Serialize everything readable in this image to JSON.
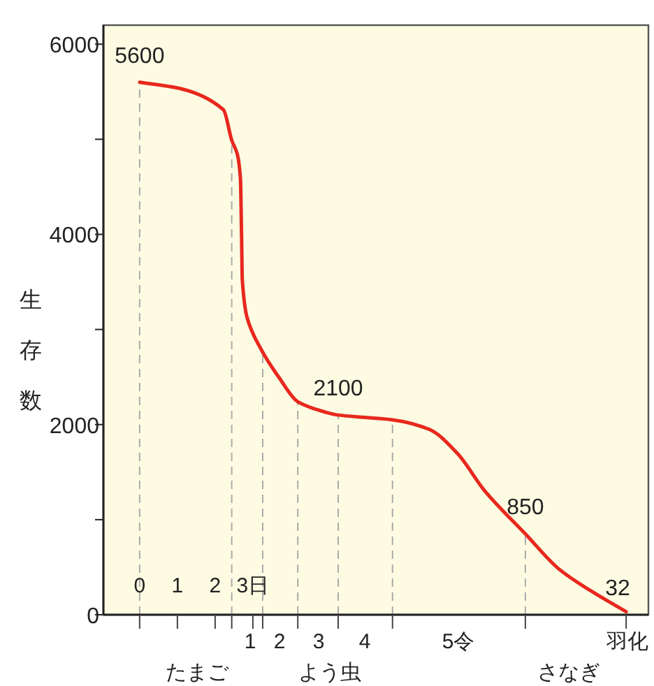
{
  "chart_data": {
    "type": "line",
    "ylabel": "生存数",
    "x": [
      0,
      1.11,
      2.22,
      2.44,
      2.59,
      2.67,
      2.7,
      2.72,
      2.85,
      3.22,
      3.7,
      4.19,
      4.93,
      5.26,
      6.7,
      7.67,
      8.41,
      9.15,
      10.22,
      11.11,
      11.96,
      12.89
    ],
    "series": [
      {
        "color": "#e8281e",
        "values": [
          5600,
          5530,
          5310,
          4990,
          4840,
          4590,
          4000,
          3520,
          3120,
          2790,
          2490,
          2240,
          2130,
          2100,
          2050,
          1950,
          1700,
          1300,
          850,
          480,
          250,
          32
        ],
        "value_labels": [
          "5600",
          null,
          null,
          null,
          null,
          null,
          null,
          null,
          null,
          null,
          null,
          null,
          null,
          "2100",
          null,
          null,
          null,
          null,
          "850",
          null,
          null,
          "32"
        ]
      }
    ],
    "xlim": [
      -0.96,
      13.48
    ],
    "xticks": [
      {
        "value": 0,
        "label": "0"
      },
      {
        "value": 1,
        "label": "1"
      },
      {
        "value": 2,
        "label": "2"
      },
      {
        "value": 2.44,
        "label": null
      },
      {
        "value": 3,
        "label": "3日"
      },
      {
        "value": 3.26,
        "label": null
      },
      {
        "value": 4.19,
        "label": null
      },
      {
        "value": 5.26,
        "label": null
      },
      {
        "value": 6.7,
        "label": null
      },
      {
        "value": 10.22,
        "label": null
      },
      {
        "value": 12.89,
        "label": null
      }
    ],
    "ylim": [
      0,
      6200
    ],
    "yticks": [
      0,
      {
        "value": 1000,
        "label": null
      },
      2000,
      {
        "value": 3000,
        "label": null
      },
      4000,
      {
        "value": 5000,
        "label": null
      },
      6000
    ],
    "ref_lines": [
      {
        "axis": "x",
        "value": 0,
        "line_style": "dashed",
        "color": "#aaaaaa"
      },
      {
        "axis": "x",
        "value": 2.44,
        "line_style": "dashed",
        "color": "#aaaaaa"
      },
      {
        "axis": "x",
        "value": 3.26,
        "line_style": "dashed",
        "color": "#aaaaaa"
      },
      {
        "axis": "x",
        "value": 4.19,
        "line_style": "dashed",
        "color": "#aaaaaa"
      },
      {
        "axis": "x",
        "value": 5.26,
        "line_style": "dashed",
        "color": "#aaaaaa"
      },
      {
        "axis": "x",
        "value": 6.7,
        "line_style": "dashed",
        "color": "#aaaaaa"
      },
      {
        "axis": "x",
        "value": 10.22,
        "line_style": "dashed",
        "color": "#aaaaaa"
      }
    ],
    "annotations": [
      "1",
      "2",
      "3",
      "4",
      "5令",
      "羽化",
      "たまご",
      "よう虫",
      "さなぎ"
    ],
    "grid": false,
    "marker": "none",
    "line_style": "solid"
  }
}
